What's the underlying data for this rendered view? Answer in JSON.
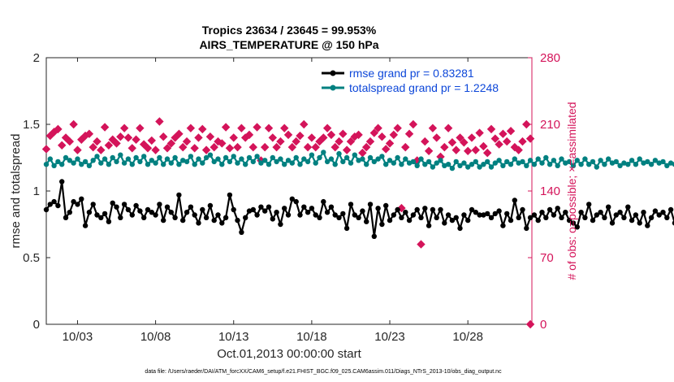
{
  "chart_data": {
    "type": "line",
    "title": "Tropics 23634 / 23645 = 99.953%",
    "subtitle": "AIRS_TEMPERATURE @ 150 hPa",
    "xlabel": "Oct.01,2013 00:00:00 start",
    "ylabel": "rmse and totalspread",
    "ylabel_right": "# of obs: o=possible; ×=assimilated",
    "footer": "data file: /Users/raeder/DAI/ATM_forcXX/CAM6_setup/f.e21.FHIST_BGC.f09_025.CAM6assim.011/Diags_NTrS_2013-10/obs_diag_output.nc",
    "xlim": [
      1.0,
      32.1
    ],
    "ylim": [
      0,
      2
    ],
    "ylim_right": [
      0,
      280
    ],
    "yticks": [
      "0",
      "0.5",
      "1",
      "1.5",
      "2"
    ],
    "yticks_right": [
      "0",
      "70",
      "140",
      "210",
      "280"
    ],
    "xticks": [
      {
        "value": 3.0,
        "label": "10/03"
      },
      {
        "value": 8.0,
        "label": "10/08"
      },
      {
        "value": 13.0,
        "label": "10/13"
      },
      {
        "value": 18.0,
        "label": "10/18"
      },
      {
        "value": 23.0,
        "label": "10/23"
      },
      {
        "value": 28.0,
        "label": "10/28"
      }
    ],
    "legend": [
      {
        "label": "rmse grand pr = 0.83281",
        "color": "#000000"
      },
      {
        "label": "totalspread grand pr = 1.2248",
        "color": "#008080"
      }
    ],
    "series": [
      {
        "name": "rmse",
        "color": "#000000",
        "axis": "left",
        "x_start": 1.0,
        "x_step": 0.25,
        "values": [
          0.86,
          0.9,
          0.92,
          0.89,
          1.07,
          0.8,
          0.84,
          0.92,
          0.9,
          0.94,
          0.74,
          0.84,
          0.9,
          0.82,
          0.8,
          0.83,
          0.77,
          0.91,
          0.88,
          0.8,
          0.9,
          0.86,
          0.82,
          0.89,
          0.85,
          0.8,
          0.86,
          0.84,
          0.82,
          0.9,
          0.78,
          0.88,
          0.84,
          0.8,
          0.97,
          0.78,
          0.84,
          0.88,
          0.82,
          0.76,
          0.86,
          0.8,
          0.89,
          0.78,
          0.82,
          0.76,
          0.8,
          0.97,
          0.86,
          0.78,
          0.69,
          0.8,
          0.85,
          0.86,
          0.82,
          0.88,
          0.85,
          0.88,
          0.79,
          0.84,
          0.75,
          0.87,
          0.82,
          0.94,
          0.92,
          0.82,
          0.88,
          0.84,
          0.87,
          0.82,
          0.8,
          0.92,
          0.84,
          0.88,
          0.82,
          0.8,
          0.83,
          0.72,
          0.9,
          0.82,
          0.8,
          0.85,
          0.77,
          0.9,
          0.66,
          0.87,
          0.75,
          0.89,
          0.78,
          0.82,
          0.86,
          0.8,
          0.84,
          0.78,
          0.82,
          0.86,
          0.8,
          0.87,
          0.74,
          0.86,
          0.8,
          0.86,
          0.76,
          0.82,
          0.78,
          0.8,
          0.72,
          0.82,
          0.78,
          0.86,
          0.84,
          0.82,
          0.82,
          0.83,
          0.8,
          0.83,
          0.85,
          0.74,
          0.83,
          0.78,
          0.93,
          0.8,
          0.86,
          0.72,
          0.8,
          0.82,
          0.78,
          0.84,
          0.8,
          0.86,
          0.82,
          0.87,
          0.8,
          0.84,
          0.78,
          0.76,
          0.73,
          0.84,
          0.8,
          0.9,
          0.78,
          0.82,
          0.84,
          0.8,
          0.88,
          0.76,
          0.82,
          0.84,
          0.8,
          0.88,
          0.78,
          0.82,
          0.76,
          0.84,
          0.74,
          0.8,
          0.85,
          0.82,
          0.84,
          0.8,
          0.86,
          0.76,
          0.84,
          0.82,
          0.74,
          0.75,
          0.74,
          0.76
        ]
      },
      {
        "name": "totalspread",
        "color": "#008080",
        "axis": "left",
        "x_start": 1.0,
        "x_step": 0.25,
        "values": [
          1.2,
          1.24,
          1.19,
          1.22,
          1.2,
          1.25,
          1.23,
          1.21,
          1.24,
          1.2,
          1.22,
          1.19,
          1.23,
          1.26,
          1.21,
          1.24,
          1.2,
          1.25,
          1.22,
          1.27,
          1.21,
          1.24,
          1.2,
          1.25,
          1.22,
          1.26,
          1.2,
          1.23,
          1.21,
          1.25,
          1.2,
          1.24,
          1.21,
          1.25,
          1.2,
          1.23,
          1.22,
          1.26,
          1.2,
          1.24,
          1.21,
          1.25,
          1.27,
          1.22,
          1.24,
          1.2,
          1.25,
          1.22,
          1.26,
          1.21,
          1.24,
          1.2,
          1.25,
          1.22,
          1.26,
          1.21,
          1.23,
          1.2,
          1.25,
          1.22,
          1.24,
          1.2,
          1.23,
          1.21,
          1.25,
          1.2,
          1.24,
          1.22,
          1.27,
          1.21,
          1.25,
          1.29,
          1.22,
          1.24,
          1.2,
          1.28,
          1.22,
          1.25,
          1.21,
          1.27,
          1.23,
          1.24,
          1.2,
          1.25,
          1.22,
          1.24,
          1.26,
          1.2,
          1.23,
          1.21,
          1.25,
          1.2,
          1.24,
          1.21,
          1.22,
          1.19,
          1.24,
          1.2,
          1.22,
          1.18,
          1.21,
          1.23,
          1.19,
          1.2,
          1.17,
          1.22,
          1.19,
          1.21,
          1.18,
          1.2,
          1.22,
          1.18,
          1.2,
          1.22,
          1.18,
          1.21,
          1.23,
          1.19,
          1.22,
          1.2,
          1.24,
          1.21,
          1.22,
          1.19,
          1.23,
          1.2,
          1.24,
          1.21,
          1.25,
          1.2,
          1.23,
          1.19,
          1.24,
          1.21,
          1.22,
          1.19,
          1.23,
          1.2,
          1.24,
          1.2,
          1.22,
          1.18,
          1.23,
          1.2,
          1.24,
          1.21,
          1.22,
          1.19,
          1.21,
          1.2,
          1.23,
          1.2,
          1.24,
          1.21,
          1.22,
          1.2,
          1.23,
          1.21,
          1.22,
          1.19,
          1.21,
          1.2,
          1.22,
          1.19
        ]
      },
      {
        "name": "# obs possible / assimilated",
        "color": "#d4145a",
        "axis": "right",
        "points": [
          [
            1.0,
            184
          ],
          [
            1.25,
            198
          ],
          [
            1.5,
            202
          ],
          [
            1.75,
            205
          ],
          [
            2.0,
            188
          ],
          [
            2.25,
            196
          ],
          [
            2.5,
            192
          ],
          [
            2.75,
            210
          ],
          [
            3.0,
            183
          ],
          [
            3.25,
            194
          ],
          [
            3.5,
            198
          ],
          [
            3.75,
            200
          ],
          [
            4.0,
            186
          ],
          [
            4.25,
            192
          ],
          [
            4.5,
            183
          ],
          [
            4.75,
            207
          ],
          [
            5.0,
            188
          ],
          [
            5.25,
            194
          ],
          [
            5.5,
            190
          ],
          [
            5.75,
            197
          ],
          [
            6.0,
            206
          ],
          [
            6.25,
            196
          ],
          [
            6.5,
            185
          ],
          [
            6.75,
            194
          ],
          [
            7.0,
            206
          ],
          [
            7.25,
            189
          ],
          [
            7.5,
            185
          ],
          [
            7.75,
            193
          ],
          [
            8.0,
            183
          ],
          [
            8.25,
            213
          ],
          [
            8.5,
            197
          ],
          [
            8.75,
            185
          ],
          [
            9.0,
            190
          ],
          [
            9.25,
            196
          ],
          [
            9.5,
            200
          ],
          [
            9.75,
            186
          ],
          [
            10.0,
            192
          ],
          [
            10.25,
            206
          ],
          [
            10.5,
            185
          ],
          [
            10.75,
            196
          ],
          [
            11.0,
            205
          ],
          [
            11.25,
            183
          ],
          [
            11.5,
            197
          ],
          [
            11.75,
            186
          ],
          [
            12.0,
            192
          ],
          [
            12.25,
            190
          ],
          [
            12.5,
            207
          ],
          [
            12.75,
            185
          ],
          [
            13.0,
            196
          ],
          [
            13.25,
            186
          ],
          [
            13.5,
            206
          ],
          [
            13.75,
            196
          ],
          [
            14.0,
            199
          ],
          [
            14.25,
            186
          ],
          [
            14.5,
            207
          ],
          [
            14.75,
            172
          ],
          [
            15.0,
            186
          ],
          [
            15.25,
            206
          ],
          [
            15.5,
            196
          ],
          [
            15.75,
            186
          ],
          [
            16.0,
            192
          ],
          [
            16.25,
            206
          ],
          [
            16.5,
            199
          ],
          [
            16.75,
            186
          ],
          [
            17.0,
            192
          ],
          [
            17.25,
            198
          ],
          [
            17.5,
            210
          ],
          [
            17.75,
            186
          ],
          [
            18.0,
            196
          ],
          [
            18.25,
            186
          ],
          [
            18.5,
            192
          ],
          [
            18.75,
            196
          ],
          [
            19.0,
            206
          ],
          [
            19.25,
            199
          ],
          [
            19.5,
            186
          ],
          [
            19.75,
            192
          ],
          [
            20.0,
            200
          ],
          [
            20.25,
            183
          ],
          [
            20.5,
            192
          ],
          [
            20.75,
            197
          ],
          [
            21.0,
            199
          ],
          [
            21.25,
            180
          ],
          [
            21.5,
            186
          ],
          [
            21.75,
            192
          ],
          [
            22.0,
            201
          ],
          [
            22.25,
            206
          ],
          [
            22.5,
            197
          ],
          [
            22.75,
            184
          ],
          [
            23.0,
            190
          ],
          [
            23.25,
            199
          ],
          [
            23.5,
            206
          ],
          [
            23.75,
            122
          ],
          [
            24.0,
            186
          ],
          [
            24.25,
            200
          ],
          [
            24.5,
            210
          ],
          [
            24.75,
            172
          ],
          [
            25.0,
            84
          ],
          [
            25.25,
            192
          ],
          [
            25.5,
            182
          ],
          [
            25.75,
            206
          ],
          [
            26.0,
            196
          ],
          [
            26.25,
            176
          ],
          [
            26.5,
            186
          ],
          [
            26.75,
            206
          ],
          [
            27.0,
            191
          ],
          [
            27.25,
            183
          ],
          [
            27.5,
            196
          ],
          [
            27.75,
            191
          ],
          [
            28.0,
            182
          ],
          [
            28.25,
            196
          ],
          [
            28.5,
            183
          ],
          [
            28.75,
            201
          ],
          [
            29.0,
            187
          ],
          [
            29.25,
            180
          ],
          [
            29.5,
            205
          ],
          [
            29.75,
            195
          ],
          [
            30.0,
            189
          ],
          [
            30.25,
            200
          ],
          [
            30.5,
            192
          ],
          [
            30.75,
            203
          ],
          [
            31.0,
            186
          ],
          [
            31.25,
            183
          ],
          [
            31.5,
            192
          ],
          [
            31.75,
            210
          ],
          [
            32.0,
            195
          ],
          [
            32.0,
            0
          ]
        ]
      }
    ]
  }
}
